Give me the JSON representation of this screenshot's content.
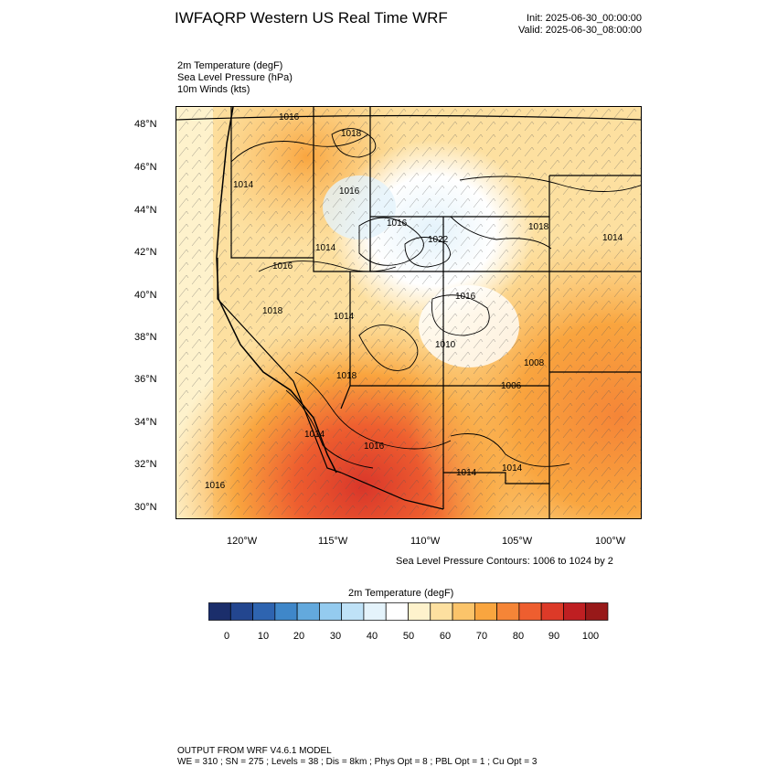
{
  "header": {
    "title": "IWFAQRP Western US Real Time WRF",
    "init": "Init: 2025-06-30_00:00:00",
    "valid": "Valid: 2025-06-30_08:00:00"
  },
  "fields": [
    {
      "label": "2m Temperature   (degF)"
    },
    {
      "label": "Sea Level Pressure   (hPa)"
    },
    {
      "label": "10m Winds   (kts)"
    }
  ],
  "map": {
    "lat_labels": [
      "48°N",
      "46°N",
      "44°N",
      "42°N",
      "40°N",
      "38°N",
      "36°N",
      "34°N",
      "32°N",
      "30°N"
    ],
    "lon_labels": [
      "120°W",
      "115°W",
      "110°W",
      "105°W",
      "100°W"
    ],
    "pressure_labels": [
      "1016",
      "1018",
      "1014",
      "1016",
      "1016",
      "1022",
      "1018",
      "1014",
      "1014",
      "1016",
      "1016",
      "1018",
      "1014",
      "1010",
      "1018",
      "1008",
      "1006",
      "1014",
      "1016",
      "1014",
      "1014",
      "1016"
    ],
    "contour_note": "Sea Level Pressure Contours: 1006 to 1024 by 2"
  },
  "colorbar": {
    "title": "2m Temperature  (degF)",
    "colors": [
      "#1b2e6b",
      "#23468f",
      "#2e64b0",
      "#3f87c9",
      "#63a9dd",
      "#94cbef",
      "#bfe2f7",
      "#e4f3fb",
      "#ffffff",
      "#fef2cc",
      "#fde0a0",
      "#fbc46a",
      "#f9a53f",
      "#f58537",
      "#ee5e2f",
      "#dc3a28",
      "#bf1f22",
      "#981919"
    ],
    "labels": [
      "0",
      "10",
      "20",
      "30",
      "40",
      "50",
      "60",
      "70",
      "80",
      "90",
      "100"
    ]
  },
  "footer": {
    "line1": "OUTPUT FROM WRF V4.6.1 MODEL",
    "line2": "WE = 310 ; SN = 275 ; Levels = 38 ; Dis = 8km ; Phys Opt = 8 ; PBL Opt = 1 ; Cu Opt = 3"
  }
}
